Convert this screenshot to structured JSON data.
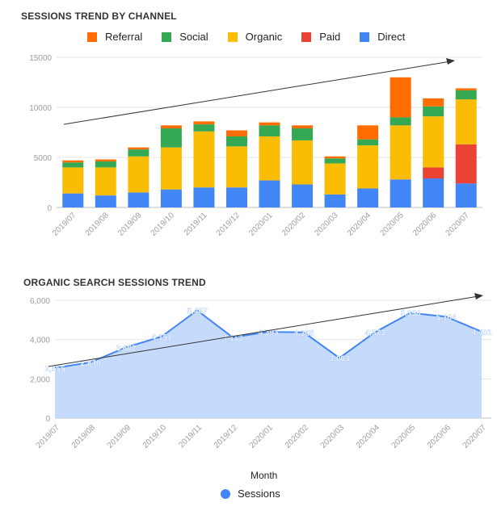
{
  "chart_data": [
    {
      "type": "bar",
      "stacked": true,
      "title": "SESSIONS TREND BY CHANNEL",
      "categories": [
        "2019/07",
        "2019/08",
        "2019/09",
        "2019/10",
        "2019/11",
        "2019/12",
        "2020/01",
        "2020/02",
        "2020/03",
        "2020/04",
        "2020/05",
        "2020/06",
        "2020/07"
      ],
      "series": [
        {
          "name": "Direct",
          "color": "#4285f4",
          "values": [
            1400,
            1200,
            1500,
            1800,
            2000,
            2000,
            2700,
            2300,
            1300,
            1900,
            2800,
            2900,
            2400
          ]
        },
        {
          "name": "Paid",
          "color": "#ea4335",
          "values": [
            0,
            0,
            0,
            0,
            0,
            0,
            0,
            0,
            0,
            0,
            0,
            1100,
            3900
          ]
        },
        {
          "name": "Organic",
          "color": "#fbbc04",
          "values": [
            2600,
            2800,
            3600,
            4200,
            5600,
            4100,
            4400,
            4400,
            3100,
            4300,
            5400,
            5100,
            4500
          ]
        },
        {
          "name": "Social",
          "color": "#34a853",
          "values": [
            500,
            600,
            700,
            1900,
            700,
            1000,
            1100,
            1200,
            500,
            600,
            800,
            1000,
            900
          ]
        },
        {
          "name": "Referral",
          "color": "#ff6d01",
          "values": [
            200,
            200,
            200,
            300,
            300,
            600,
            300,
            300,
            200,
            1400,
            4000,
            800,
            200
          ]
        }
      ],
      "ylim": [
        0,
        15000
      ],
      "yticks": [
        "0",
        "5000",
        "10000",
        "15000"
      ],
      "legend": [
        "Referral",
        "Social",
        "Organic",
        "Paid",
        "Direct"
      ],
      "legend_position": "top",
      "trend_line": true
    },
    {
      "type": "area",
      "title": "ORGANIC SEARCH SESSIONS TREND",
      "categories": [
        "2019/07",
        "2019/08",
        "2019/09",
        "2019/10",
        "2019/11",
        "2019/12",
        "2020/01",
        "2020/02",
        "2020/03",
        "2020/04",
        "2020/05",
        "2020/06",
        "2020/07"
      ],
      "series": [
        {
          "name": "Sessions",
          "color": "#4285f4",
          "values": [
            2555,
            2840,
            3602,
            4151,
            5487,
            4113,
            4393,
            4365,
            3063,
            4373,
            5358,
            5164,
            4401
          ]
        }
      ],
      "data_labels": [
        "2,555",
        "2,840",
        "3,602",
        "4,151",
        "5,487",
        "4,113",
        "4,393",
        "4,365",
        "3,063",
        "4,373",
        "5,358",
        "5,164",
        "4,401"
      ],
      "ylim": [
        0,
        6000
      ],
      "yticks": [
        "0",
        "2,000",
        "4,000",
        "6,000"
      ],
      "xlabel": "Month",
      "legend": [
        "Sessions"
      ],
      "legend_position": "bottom",
      "trend_line": true
    }
  ]
}
